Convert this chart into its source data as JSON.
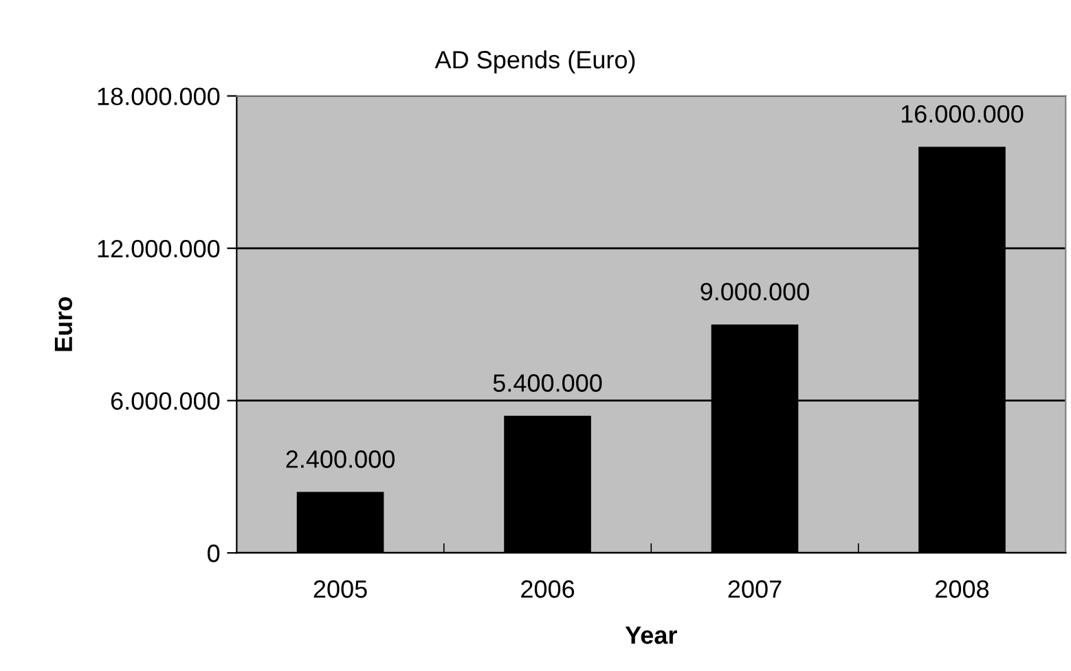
{
  "chart_data": {
    "type": "bar",
    "title": "AD Spends (Euro)",
    "xlabel": "Year",
    "ylabel": "Euro",
    "categories": [
      "2005",
      "2006",
      "2007",
      "2008"
    ],
    "values": [
      2400000,
      5400000,
      9000000,
      16000000
    ],
    "value_labels": [
      "2.400.000",
      "5.400.000",
      "9.000.000",
      "16.000.000"
    ],
    "color": "#000000",
    "ylim": [
      0,
      18000000
    ],
    "yticks": [
      {
        "value": 0,
        "label": "0"
      },
      {
        "value": 6000000,
        "label": "6.000.000"
      },
      {
        "value": 12000000,
        "label": "12.000.000"
      },
      {
        "value": 18000000,
        "label": "18.000.000"
      }
    ],
    "grid": "y",
    "legend": false
  }
}
